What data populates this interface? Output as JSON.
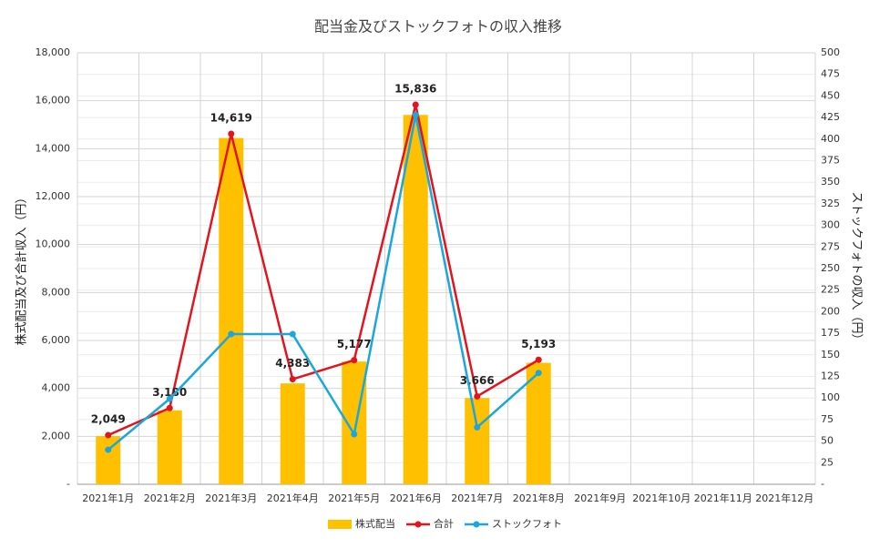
{
  "chart_data": {
    "type": "bar_line",
    "title": "配当金及びストックフォトの収入推移",
    "y_label": "株式配当及び合計収入（円）",
    "y2_label": "ストックフォトの収入（円）",
    "categories": [
      "2021年1月",
      "2021年2月",
      "2021年3月",
      "2021年4月",
      "2021年5月",
      "2021年6月",
      "2021年7月",
      "2021年8月",
      "2021年9月",
      "2021年10月",
      "2021年11月",
      "2021年12月"
    ],
    "series": [
      {
        "name": "株式配当",
        "type": "bar",
        "color": "#ffc000",
        "values": [
          2009,
          3081,
          14445,
          4209,
          5119,
          15408,
          3600,
          5064,
          null,
          null,
          null,
          null
        ]
      },
      {
        "name": "合計",
        "type": "line",
        "color": "#e3141d",
        "values": [
          2049,
          3180,
          14619,
          4383,
          5177,
          15836,
          3666,
          5193,
          null,
          null,
          null,
          null
        ],
        "value_labels": [
          "2,049",
          "3,180",
          "14,619",
          "4,383",
          "5,177",
          "15,836",
          "3,666",
          "5,193",
          null,
          null,
          null,
          null
        ]
      },
      {
        "name": "ストックフォト",
        "type": "line",
        "axis": "y2",
        "color": "#1ba7dc",
        "values": [
          40,
          99,
          174,
          174,
          58,
          428,
          66,
          129,
          null,
          null,
          null,
          null
        ]
      }
    ],
    "ylim": [
      0,
      18000
    ],
    "yticks": [
      {
        "value": 0,
        "label": "-"
      },
      {
        "value": 2000,
        "label": "2,000"
      },
      {
        "value": 4000,
        "label": "4,000"
      },
      {
        "value": 6000,
        "label": "6,000"
      },
      {
        "value": 8000,
        "label": "8,000"
      },
      {
        "value": 10000,
        "label": "10,000"
      },
      {
        "value": 12000,
        "label": "12,000"
      },
      {
        "value": 14000,
        "label": "14,000"
      },
      {
        "value": 16000,
        "label": "16,000"
      },
      {
        "value": 18000,
        "label": "18,000"
      }
    ],
    "y2lim": [
      0,
      500
    ],
    "y2ticks": [
      {
        "value": 0,
        "label": "-"
      },
      25,
      50,
      75,
      100,
      125,
      150,
      175,
      200,
      225,
      250,
      275,
      300,
      325,
      350,
      375,
      400,
      425,
      450,
      475,
      500
    ],
    "grid": true,
    "legend": "bottom"
  }
}
